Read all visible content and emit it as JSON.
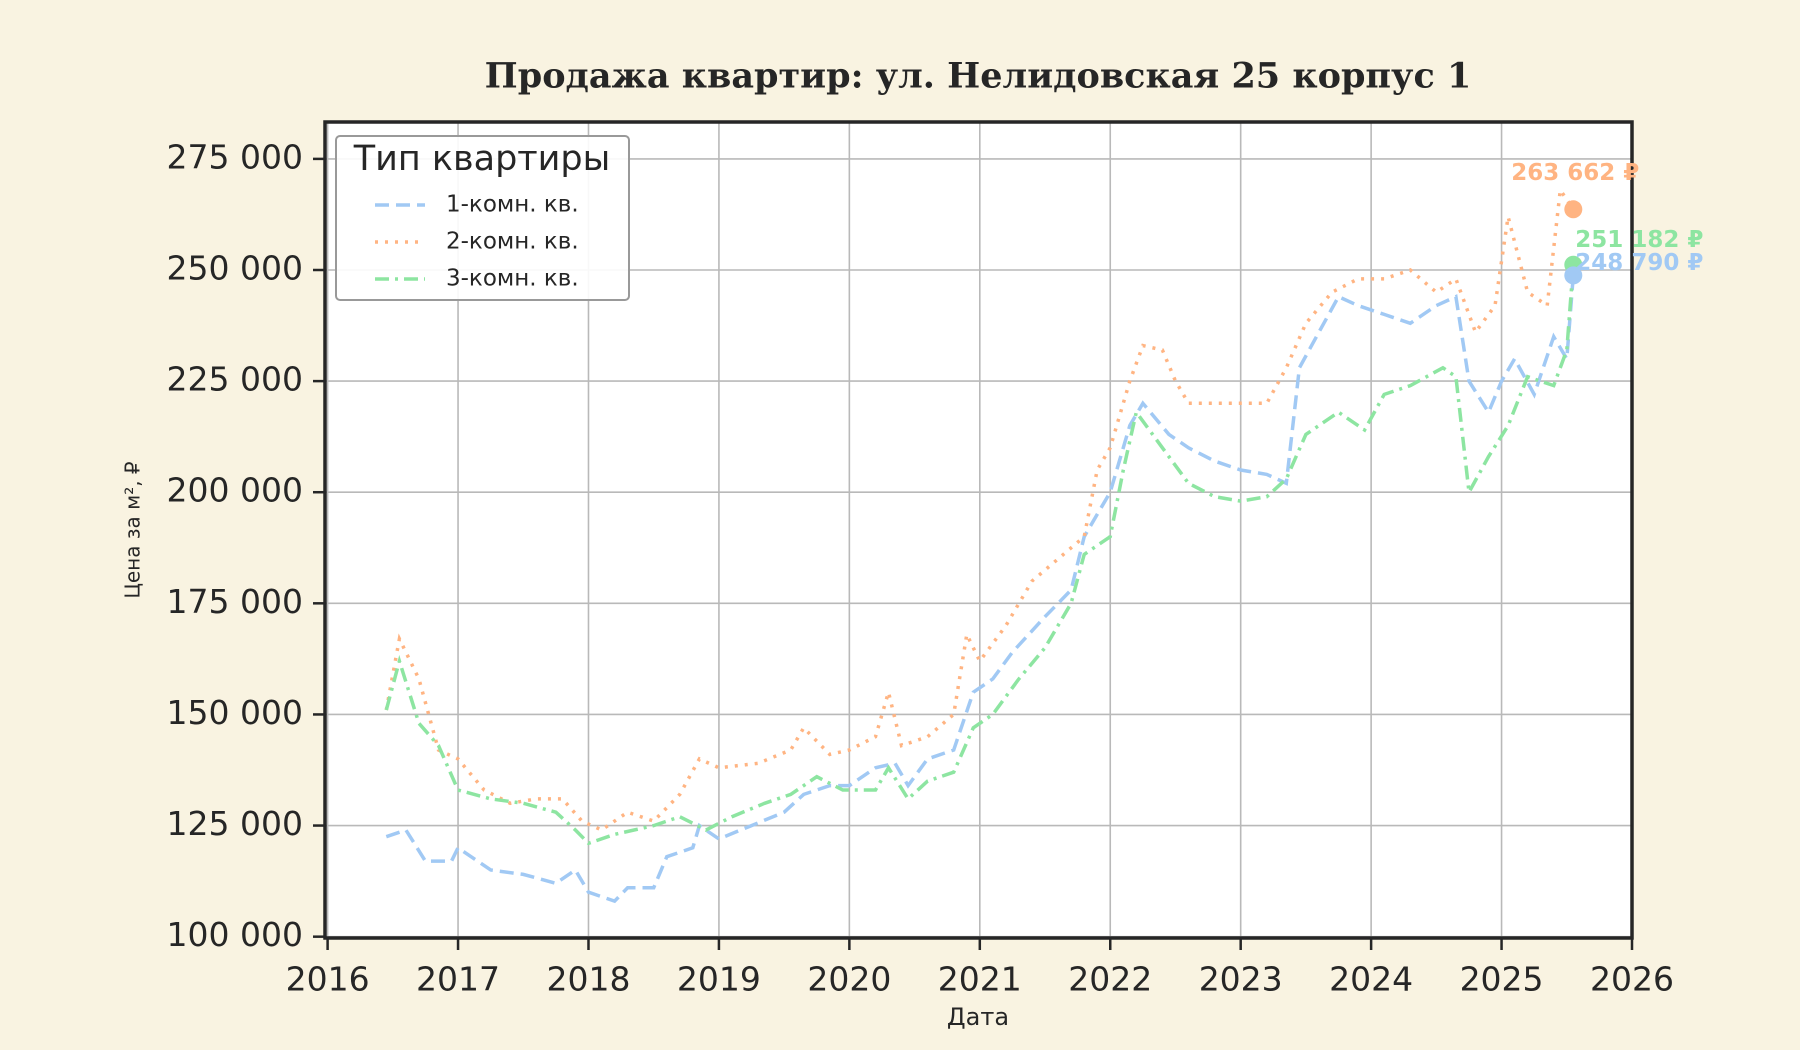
{
  "chart_data": {
    "type": "line",
    "title": "Продажа квартир: ул. Нелидовская 25 корпус 1",
    "x_label": "Дата",
    "y_label": "Цена за м², ₽",
    "xlim": [
      2015.98,
      2026.0
    ],
    "xticks": [
      2016,
      2017,
      2018,
      2019,
      2020,
      2021,
      2022,
      2023,
      2024,
      2025,
      2026
    ],
    "ylim": [
      99700,
      283300
    ],
    "yticks": [
      {
        "value": 100000,
        "label": "100 000"
      },
      {
        "value": 125000,
        "label": "125 000"
      },
      {
        "value": 150000,
        "label": "150 000"
      },
      {
        "value": 175000,
        "label": "175 000"
      },
      {
        "value": 200000,
        "label": "200 000"
      },
      {
        "value": 225000,
        "label": "225 000"
      },
      {
        "value": 250000,
        "label": "250 000"
      },
      {
        "value": 275000,
        "label": "275 000"
      }
    ],
    "grid": true,
    "legend": {
      "title": "Тип квартиры",
      "loc": "upper left"
    },
    "series": [
      {
        "name": "1-комн. кв.",
        "color": "#a1c9f4",
        "dash": "dashed",
        "x": [
          2016.45,
          2016.6,
          2016.75,
          2016.95,
          2017.0,
          2017.25,
          2017.5,
          2017.75,
          2017.9,
          2018.0,
          2018.2,
          2018.3,
          2018.5,
          2018.6,
          2018.8,
          2018.85,
          2019.0,
          2019.25,
          2019.5,
          2019.65,
          2019.85,
          2020.0,
          2020.2,
          2020.35,
          2020.45,
          2020.6,
          2020.8,
          2020.95,
          2021.1,
          2021.25,
          2021.5,
          2021.7,
          2021.8,
          2021.9,
          2022.0,
          2022.15,
          2022.25,
          2022.45,
          2022.6,
          2022.8,
          2023.0,
          2023.2,
          2023.35,
          2023.45,
          2023.6,
          2023.75,
          2023.9,
          2024.1,
          2024.3,
          2024.5,
          2024.65,
          2024.75,
          2024.9,
          2025.0,
          2025.1,
          2025.25,
          2025.4,
          2025.5,
          2025.55
        ],
        "values": [
          122500,
          124000,
          117000,
          117000,
          120000,
          115000,
          114000,
          112000,
          115000,
          110000,
          108000,
          111000,
          111000,
          118000,
          120000,
          125000,
          122000,
          125000,
          128000,
          132000,
          134000,
          134000,
          138000,
          139000,
          134000,
          140000,
          142000,
          155000,
          158000,
          164000,
          172000,
          178000,
          190000,
          195000,
          200000,
          215000,
          220000,
          213000,
          210000,
          207000,
          205000,
          204000,
          202000,
          228000,
          236000,
          244000,
          242000,
          240000,
          238000,
          242000,
          244000,
          225000,
          218000,
          225000,
          230000,
          222000,
          235000,
          230000,
          248790
        ]
      },
      {
        "name": "2-комн. кв.",
        "color": "#ffb482",
        "dash": "dotted",
        "x": [
          2016.45,
          2016.55,
          2016.7,
          2016.85,
          2017.0,
          2017.2,
          2017.4,
          2017.6,
          2017.8,
          2017.95,
          2018.1,
          2018.3,
          2018.5,
          2018.7,
          2018.85,
          2019.0,
          2019.3,
          2019.55,
          2019.65,
          2019.85,
          2020.0,
          2020.2,
          2020.3,
          2020.4,
          2020.6,
          2020.8,
          2020.9,
          2021.0,
          2021.2,
          2021.4,
          2021.6,
          2021.8,
          2021.9,
          2022.0,
          2022.15,
          2022.25,
          2022.4,
          2022.5,
          2022.6,
          2022.8,
          2023.0,
          2023.2,
          2023.35,
          2023.5,
          2023.7,
          2023.9,
          2024.1,
          2024.3,
          2024.5,
          2024.65,
          2024.8,
          2024.95,
          2025.05,
          2025.2,
          2025.35,
          2025.45,
          2025.55
        ],
        "values": [
          151000,
          167000,
          158000,
          142000,
          140000,
          133000,
          130000,
          131000,
          131000,
          126000,
          124000,
          128000,
          126000,
          132000,
          140000,
          138000,
          139000,
          142000,
          147000,
          141000,
          142000,
          145000,
          155000,
          143000,
          145000,
          150000,
          168000,
          162000,
          170000,
          180000,
          185000,
          190000,
          205000,
          210000,
          225000,
          233000,
          232000,
          225000,
          220000,
          220000,
          220000,
          220000,
          228000,
          238000,
          245000,
          248000,
          248000,
          250000,
          245000,
          248000,
          236000,
          242000,
          262000,
          245000,
          242000,
          268000,
          263662
        ]
      },
      {
        "name": "3-комн. кв.",
        "color": "#8de5a1",
        "dash": "dashdot",
        "x": [
          2016.45,
          2016.55,
          2016.7,
          2016.85,
          2017.0,
          2017.25,
          2017.5,
          2017.75,
          2017.9,
          2018.0,
          2018.2,
          2018.5,
          2018.7,
          2018.9,
          2019.1,
          2019.35,
          2019.55,
          2019.75,
          2019.95,
          2020.2,
          2020.3,
          2020.45,
          2020.6,
          2020.8,
          2020.95,
          2021.1,
          2021.3,
          2021.5,
          2021.7,
          2021.8,
          2022.0,
          2022.1,
          2022.2,
          2022.4,
          2022.6,
          2022.8,
          2023.0,
          2023.2,
          2023.35,
          2023.5,
          2023.75,
          2023.95,
          2024.1,
          2024.3,
          2024.55,
          2024.65,
          2024.75,
          2024.9,
          2025.05,
          2025.2,
          2025.4,
          2025.5,
          2025.55
        ],
        "values": [
          151000,
          162000,
          148000,
          143000,
          133000,
          131000,
          130000,
          128000,
          124000,
          121000,
          123000,
          125000,
          127000,
          124000,
          127000,
          130000,
          132000,
          136000,
          133000,
          133000,
          138000,
          131000,
          135000,
          137000,
          147000,
          150000,
          158000,
          165000,
          175000,
          186000,
          190000,
          205000,
          218000,
          210000,
          202000,
          199000,
          198000,
          199000,
          203000,
          213000,
          218000,
          214000,
          222000,
          224000,
          228000,
          226000,
          200000,
          208000,
          215000,
          226000,
          224000,
          232000,
          251182
        ]
      }
    ],
    "annotations": [
      {
        "text": "263 662 ₽",
        "x": 2025.55,
        "y": 263662,
        "color": "#ffb482"
      },
      {
        "text": "251 182 ₽",
        "x": 2025.55,
        "y": 251182,
        "color": "#8de5a1"
      },
      {
        "text": "248 790 ₽",
        "x": 2025.55,
        "y": 248790,
        "color": "#a1c9f4"
      }
    ]
  }
}
